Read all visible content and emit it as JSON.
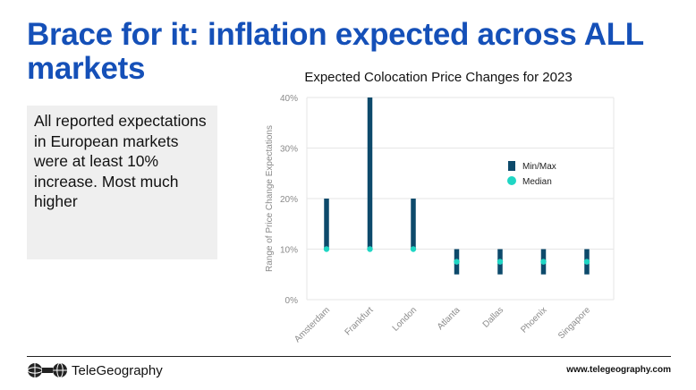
{
  "slide": {
    "title": "Brace for it: inflation expected across ALL markets",
    "callout": "All reported expectations in European markets were at least 10% increase. Most much higher"
  },
  "colors": {
    "title": "#1550b8",
    "minmax": "#0d4a6b",
    "median": "#1fd6c4",
    "grid": "#e6e6e6",
    "axis_text": "#8a8a8a"
  },
  "chart_data": {
    "type": "range-bar",
    "title": "Expected Colocation Price Changes for 2023",
    "ylabel": "Range of Price Change Expectations",
    "xlabel": "",
    "categories": [
      "Amsterdam",
      "Frankfurt",
      "London",
      "Atlanta",
      "Dallas",
      "Phoenix",
      "Singapore"
    ],
    "min": [
      10,
      10,
      10,
      5,
      5,
      5,
      5
    ],
    "max": [
      20,
      40,
      20,
      10,
      10,
      10,
      10
    ],
    "median": [
      10,
      10,
      10,
      7.5,
      7.5,
      7.5,
      7.5
    ],
    "ylim": [
      0,
      40
    ],
    "yticks": [
      0,
      10,
      20,
      30,
      40
    ],
    "ytick_labels": [
      "0%",
      "10%",
      "20%",
      "30%",
      "40%"
    ],
    "legend": {
      "position": "right",
      "items": [
        "Min/Max",
        "Median"
      ]
    },
    "grid": true
  },
  "footer": {
    "brand": "TeleGeography",
    "url": "www.telegeography.com"
  }
}
